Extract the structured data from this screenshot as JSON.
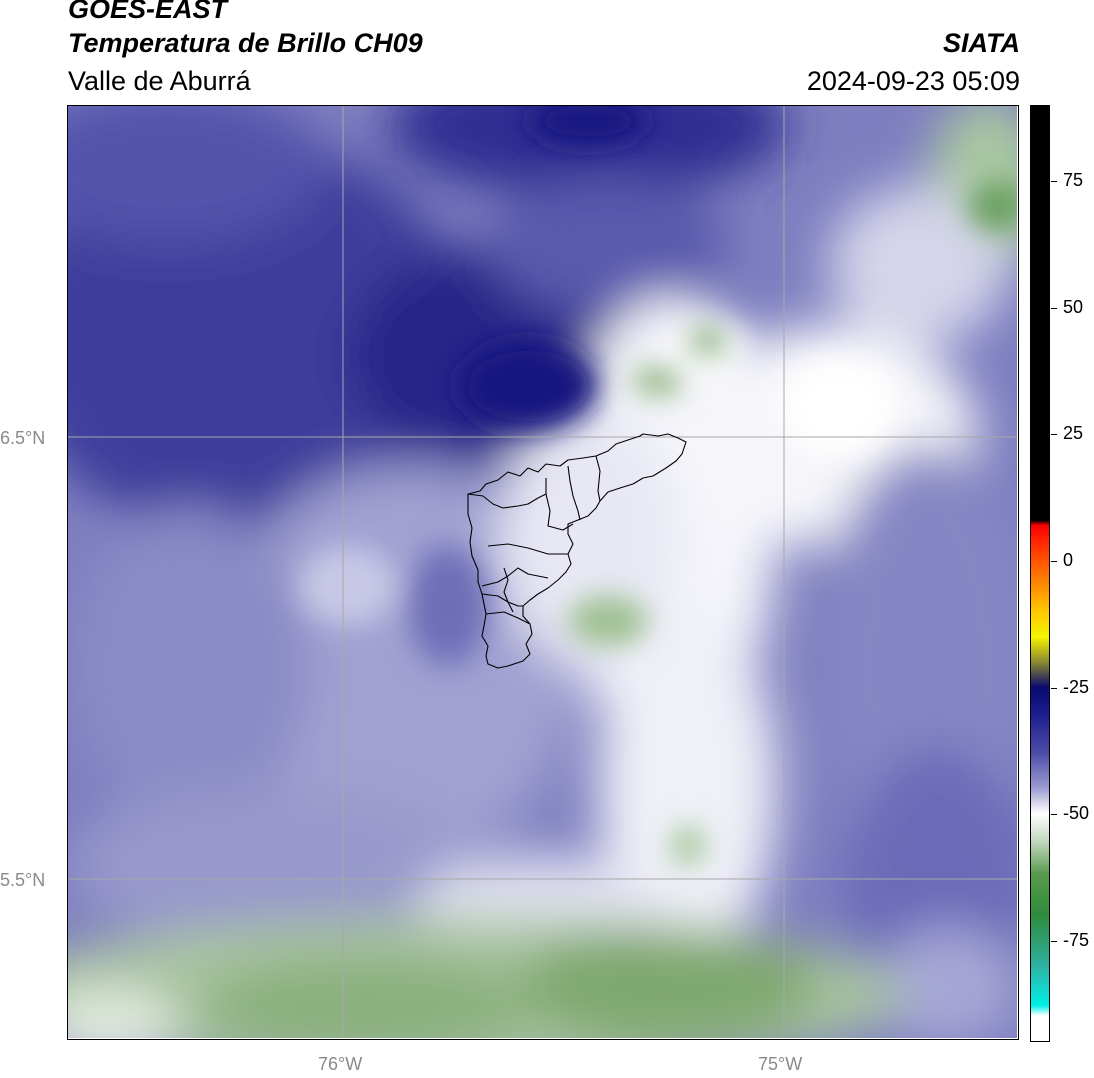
{
  "header": {
    "title_line1": "GOES-EAST",
    "title_line2": "Temperatura de Brillo CH09",
    "subtitle": "Valle de Aburrá",
    "organization": "SIATA",
    "datetime": "2024-09-23 05:09"
  },
  "map": {
    "lat_labels": [
      "6.5°N",
      "5.5°N"
    ],
    "lon_labels": [
      "76°W",
      "75°W"
    ],
    "gridline_color": "#a8a8a8",
    "boundary_color": "#000000"
  },
  "colorbar": {
    "tick_labels": [
      "75",
      "50",
      "25",
      "0",
      "-25",
      "-50",
      "-75"
    ],
    "tick_values": [
      75,
      50,
      25,
      0,
      -25,
      -50,
      -75
    ],
    "range": [
      -95,
      90
    ],
    "color_stops": [
      {
        "value": 90,
        "color": "#000000"
      },
      {
        "value": 8,
        "color": "#000000"
      },
      {
        "value": 7,
        "color": "#ff0000"
      },
      {
        "value": -2,
        "color": "#ff6a00"
      },
      {
        "value": -10,
        "color": "#ffc800"
      },
      {
        "value": -15,
        "color": "#f5f500"
      },
      {
        "value": -20,
        "color": "#8a8a30"
      },
      {
        "value": -25,
        "color": "#0a0a70"
      },
      {
        "value": -30,
        "color": "#1a1a8c"
      },
      {
        "value": -38,
        "color": "#4d4da8"
      },
      {
        "value": -45,
        "color": "#9c9cd0"
      },
      {
        "value": -50,
        "color": "#ffffff"
      },
      {
        "value": -55,
        "color": "#c8dcc4"
      },
      {
        "value": -62,
        "color": "#5a9a4c"
      },
      {
        "value": -70,
        "color": "#2e8c3c"
      },
      {
        "value": -80,
        "color": "#30b0a0"
      },
      {
        "value": -88,
        "color": "#00f0e8"
      },
      {
        "value": -90,
        "color": "#ffffff"
      }
    ]
  }
}
